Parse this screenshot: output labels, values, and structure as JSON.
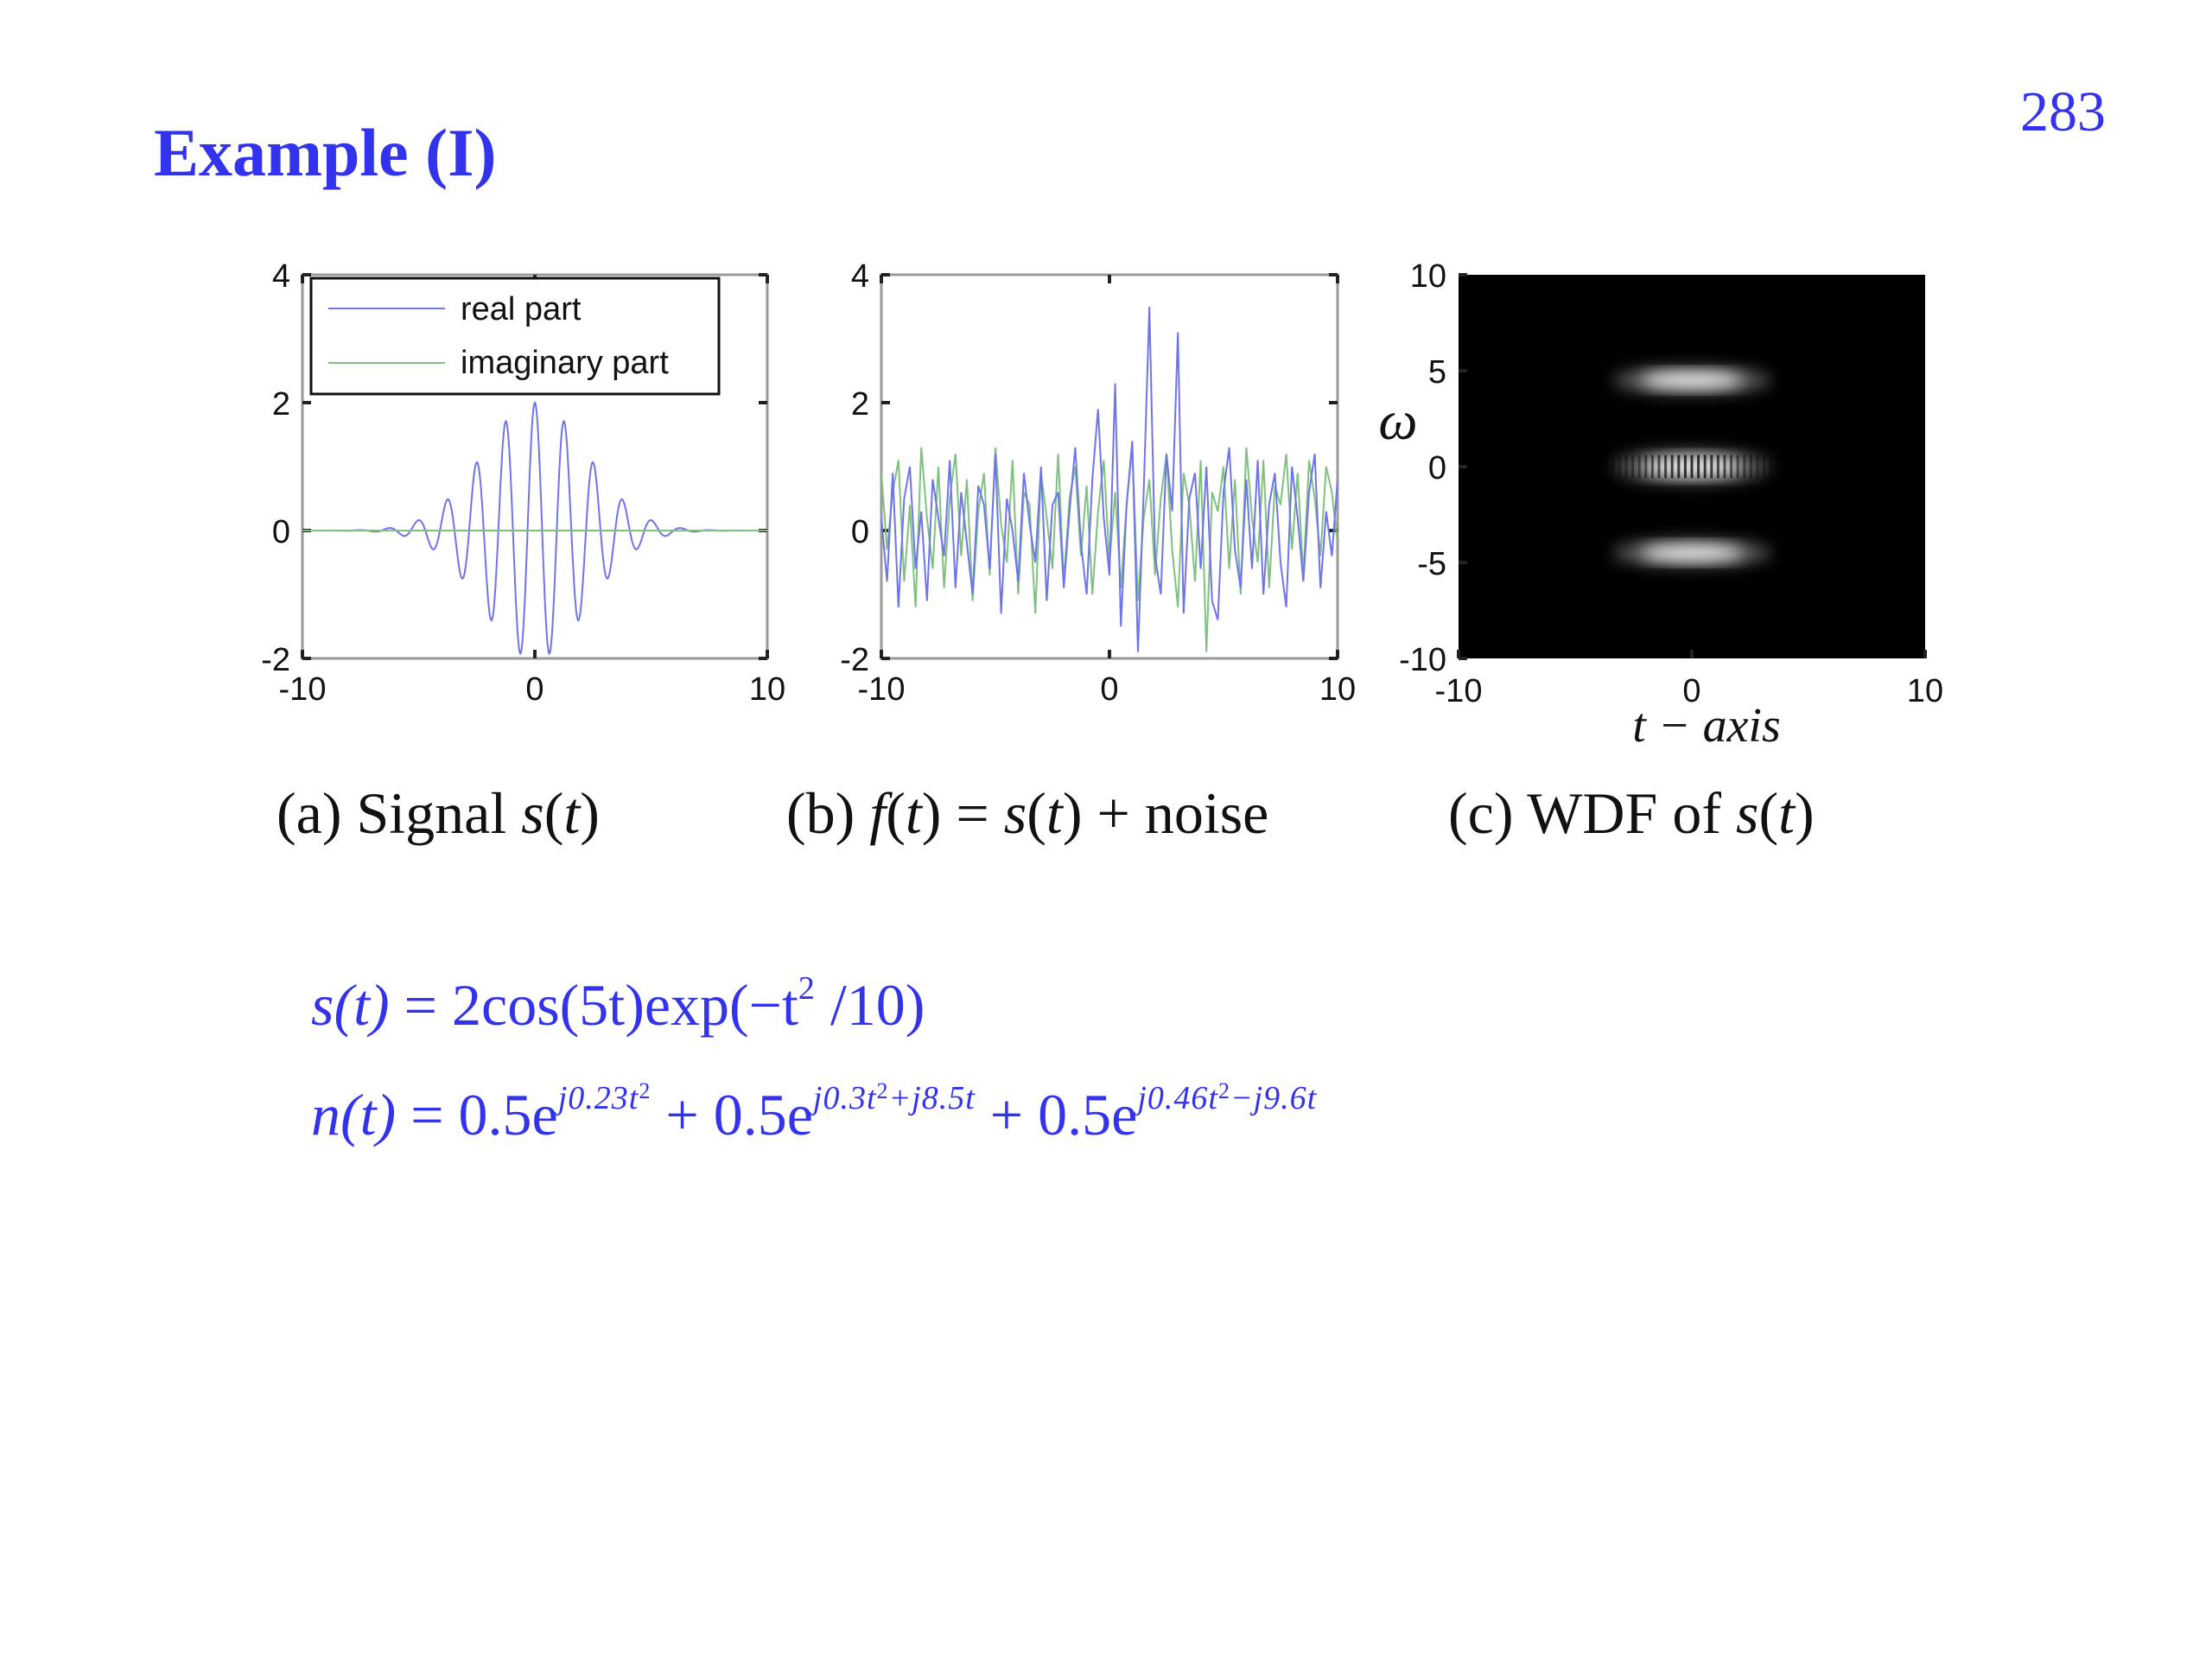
{
  "slide": {
    "title": "Example (I)",
    "page_number": "283",
    "accent_color": "#3333ee"
  },
  "captions": {
    "a": {
      "prefix": "(a) Signal ",
      "fn": "s",
      "arg": "t"
    },
    "b": {
      "prefix": "(b) ",
      "fn": "f",
      "arg": "t",
      "mid": " = ",
      "fn2": "s",
      "arg2": "t",
      "suffix": " + noise"
    },
    "c": {
      "prefix": "(c) WDF of ",
      "fn": "s",
      "arg": "t"
    }
  },
  "equations": {
    "s": {
      "lhs": "s(t)",
      "rhs": " = 2cos(5t)exp(−t",
      "power": "2",
      "tail": " /10)"
    },
    "n": {
      "lhs": "n(t)",
      "eq": " = ",
      "terms": [
        {
          "coef": "0.5e",
          "exponent": "j0.23t",
          "sq": "2",
          "after": ""
        },
        {
          "coef": " + 0.5e",
          "exponent": "j0.3t",
          "sq": "2",
          "after": "+j8.5t"
        },
        {
          "coef": " + 0.5e",
          "exponent": "j0.46t",
          "sq": "2",
          "after": "−j9.6t"
        }
      ]
    }
  },
  "chart_data": [
    {
      "type": "line",
      "id": "signal",
      "xlim": [
        -10,
        10
      ],
      "ylim": [
        -2,
        4
      ],
      "xticks": [
        "-10",
        "0",
        "10"
      ],
      "yticks": [
        "-2",
        "0",
        "2",
        "4"
      ],
      "legend_position": "top",
      "series": [
        {
          "name": "real part",
          "color": "#6f74ee",
          "formula": "2cos(5t)exp(-t^2/10)"
        },
        {
          "name": "imaginary part",
          "color": "#7fc27f",
          "values_constant": 0
        }
      ]
    },
    {
      "type": "line",
      "id": "noisy",
      "xlim": [
        -10,
        10
      ],
      "ylim": [
        -2,
        4
      ],
      "xticks": [
        "-10",
        "0",
        "10"
      ],
      "yticks": [
        "-2",
        "0",
        "2",
        "4"
      ],
      "series": [
        {
          "color": "#6f74ee",
          "values": [
            0.2,
            -0.8,
            0.9,
            -1.2,
            0.5,
            1.0,
            -0.6,
            0.3,
            -1.1,
            0.8,
            0.2,
            -0.4,
            1.1,
            -0.9,
            0.6,
            -0.2,
            -1.0,
            0.7,
            0.4,
            -0.6,
            1.2,
            -1.3,
            0.5,
            0.0,
            -0.8,
            0.9,
            0.1,
            -0.5,
            1.0,
            -1.1,
            0.4,
            0.6,
            -0.9,
            0.3,
            1.3,
            -0.2,
            -1.0,
            0.8,
            1.9,
            0.2,
            -0.7,
            2.3,
            -1.5,
            0.4,
            1.4,
            -1.9,
            0.6,
            3.5,
            -0.4,
            -1.0,
            1.2,
            0.3,
            3.1,
            -1.3,
            0.5,
            0.9,
            -0.6,
            1.0,
            -1.1,
            -1.4,
            0.6,
            1.3,
            -0.3,
            -0.9,
            0.8,
            -0.6,
            1.1,
            -1.0,
            0.4,
            0.9,
            -0.5,
            -1.2,
            1.0,
            0.2,
            -0.8,
            0.6,
            1.2,
            -0.9,
            0.3,
            -0.4,
            0.8
          ]
        },
        {
          "color": "#7fc27f",
          "values": [
            0.9,
            -0.3,
            0.6,
            1.1,
            -0.8,
            0.4,
            -1.2,
            1.3,
            0.2,
            -0.6,
            1.0,
            -0.9,
            0.5,
            1.2,
            -0.4,
            0.8,
            -1.1,
            0.3,
            0.9,
            -0.7,
            1.3,
            0.1,
            -0.5,
            1.1,
            -1.0,
            0.6,
            0.4,
            -1.3,
            0.9,
            0.2,
            -0.6,
            1.2,
            -0.8,
            0.5,
            1.0,
            -0.4,
            0.7,
            -1.0,
            0.3,
            1.1,
            -0.5,
            0.6,
            -0.9,
            0.4,
            1.3,
            -1.1,
            0.2,
            0.8,
            -0.7,
            0.5,
            1.2,
            -0.3,
            -1.2,
            0.9,
            0.4,
            -0.8,
            1.1,
            -1.9,
            0.6,
            0.3,
            1.0,
            -0.6,
            0.8,
            -1.0,
            1.3,
            0.2,
            -0.5,
            1.1,
            -0.9,
            0.7,
            0.4,
            1.2,
            -0.3,
            0.9,
            -0.7,
            1.1,
            0.5,
            -0.4,
            1.0,
            0.6,
            -0.2
          ]
        }
      ]
    },
    {
      "type": "heatmap",
      "id": "wdf",
      "xlim": [
        -10,
        10
      ],
      "ylim": [
        -10,
        10
      ],
      "xticks": [
        "-10",
        "0",
        "10"
      ],
      "yticks": [
        "-10",
        "-5",
        "0",
        "5",
        "10"
      ],
      "xlabel": "t − axis",
      "ylabel": "ω",
      "colormap": "gray",
      "components": [
        {
          "omega": 4.5,
          "t_center": 0,
          "t_halfwidth": 4.0,
          "omega_halfwidth": 0.45,
          "oscillating": false
        },
        {
          "omega": 0,
          "t_center": 0,
          "t_halfwidth": 4.0,
          "omega_halfwidth": 0.55,
          "oscillating": true
        },
        {
          "omega": -4.5,
          "t_center": 0,
          "t_halfwidth": 4.0,
          "omega_halfwidth": 0.45,
          "oscillating": false
        }
      ]
    }
  ]
}
